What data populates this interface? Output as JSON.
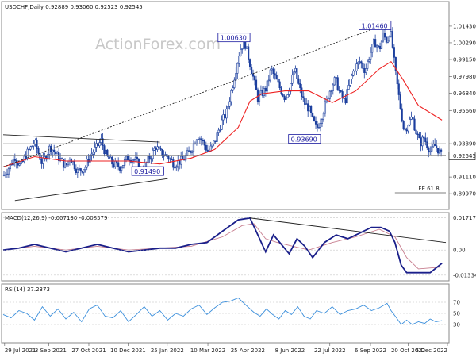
{
  "chart_data": [
    {
      "type": "candlestick",
      "title": "USDCHF,Daily 0.92889 0.93060 0.92523 0.92545",
      "watermark": "ActionForex.com",
      "ylim": [
        0.89,
        1.03
      ],
      "y_ticks": [
        "1.01430",
        "1.00290",
        "0.99150",
        "0.97980",
        "0.96840",
        "0.95660",
        "0.93390",
        "0.92545",
        "0.91110",
        "0.89970"
      ],
      "x_labels": [
        "29 Jul 2021",
        "13 Sep 2021",
        "27 Oct 2021",
        "10 Dec 2021",
        "25 Jan 2022",
        "10 Mar 2022",
        "25 Apr 2022",
        "8 Jun 2022",
        "22 Jul 2022",
        "6 Sep 2022",
        "20 Oct 2022",
        "5 Dec 2022"
      ],
      "current_price": "0.92545",
      "ma_color": "#ee2222",
      "candle_color": "#1c3f9e",
      "annotations": [
        "1.00630",
        "1.01460",
        "0.93690",
        "0.91490",
        "FE 61.8"
      ],
      "close_path": [
        [
          0,
          0.912
        ],
        [
          8,
          0.918
        ],
        [
          15,
          0.925
        ],
        [
          22,
          0.918
        ],
        [
          30,
          0.927
        ],
        [
          40,
          0.935
        ],
        [
          50,
          0.92
        ],
        [
          60,
          0.932
        ],
        [
          70,
          0.925
        ],
        [
          80,
          0.918
        ],
        [
          85,
          0.925
        ],
        [
          95,
          0.915
        ],
        [
          105,
          0.918
        ],
        [
          110,
          0.925
        ],
        [
          120,
          0.932
        ],
        [
          125,
          0.936
        ],
        [
          132,
          0.925
        ],
        [
          140,
          0.92
        ],
        [
          150,
          0.918
        ],
        [
          160,
          0.925
        ],
        [
          170,
          0.922
        ],
        [
          175,
          0.915
        ],
        [
          180,
          0.918
        ],
        [
          188,
          0.925
        ],
        [
          195,
          0.932
        ],
        [
          200,
          0.928
        ],
        [
          210,
          0.925
        ],
        [
          218,
          0.92
        ],
        [
          230,
          0.923
        ],
        [
          240,
          0.93
        ],
        [
          248,
          0.94
        ],
        [
          255,
          0.935
        ],
        [
          262,
          0.928
        ],
        [
          270,
          0.935
        ],
        [
          278,
          0.948
        ],
        [
          285,
          0.955
        ],
        [
          292,
          0.972
        ],
        [
          297,
          0.985
        ],
        [
          302,
          0.998
        ],
        [
          308,
          1.004
        ],
        [
          312,
          0.995
        ],
        [
          318,
          0.982
        ],
        [
          325,
          0.965
        ],
        [
          330,
          0.968
        ],
        [
          336,
          0.972
        ],
        [
          342,
          0.985
        ],
        [
          348,
          0.978
        ],
        [
          355,
          0.97
        ],
        [
          360,
          0.965
        ],
        [
          367,
          0.975
        ],
        [
          372,
          0.985
        ],
        [
          378,
          0.972
        ],
        [
          384,
          0.962
        ],
        [
          390,
          0.958
        ],
        [
          395,
          0.95
        ],
        [
          400,
          0.944
        ],
        [
          405,
          0.95
        ],
        [
          412,
          0.962
        ],
        [
          418,
          0.972
        ],
        [
          424,
          0.978
        ],
        [
          430,
          0.968
        ],
        [
          436,
          0.962
        ],
        [
          442,
          0.975
        ],
        [
          448,
          0.985
        ],
        [
          455,
          0.99
        ],
        [
          462,
          0.984
        ],
        [
          468,
          0.995
        ],
        [
          474,
          1.004
        ],
        [
          480,
          0.998
        ],
        [
          485,
          1.008
        ],
        [
          490,
          1.004
        ],
        [
          494,
          1.012
        ],
        [
          497,
          1.0
        ],
        [
          500,
          0.985
        ],
        [
          504,
          0.97
        ],
        [
          508,
          0.955
        ],
        [
          512,
          0.942
        ],
        [
          517,
          0.948
        ],
        [
          522,
          0.952
        ],
        [
          527,
          0.942
        ],
        [
          532,
          0.934
        ],
        [
          537,
          0.938
        ],
        [
          542,
          0.932
        ],
        [
          546,
          0.928
        ],
        [
          550,
          0.933
        ],
        [
          555,
          0.93
        ],
        [
          560,
          0.925
        ]
      ],
      "ma_path": [
        [
          0,
          0.918
        ],
        [
          40,
          0.925
        ],
        [
          80,
          0.922
        ],
        [
          120,
          0.922
        ],
        [
          160,
          0.922
        ],
        [
          200,
          0.92
        ],
        [
          240,
          0.924
        ],
        [
          270,
          0.93
        ],
        [
          300,
          0.945
        ],
        [
          315,
          0.963
        ],
        [
          330,
          0.968
        ],
        [
          360,
          0.97
        ],
        [
          390,
          0.97
        ],
        [
          420,
          0.962
        ],
        [
          450,
          0.97
        ],
        [
          480,
          0.985
        ],
        [
          495,
          0.99
        ],
        [
          510,
          0.978
        ],
        [
          530,
          0.96
        ],
        [
          560,
          0.95
        ]
      ],
      "trend_lines": [
        {
          "name": "upper",
          "from": [
            0,
            0.94
          ],
          "to": [
            200,
            0.935
          ]
        },
        {
          "name": "lower",
          "from": [
            15,
            0.895
          ],
          "to": [
            210,
            0.91
          ]
        },
        {
          "name": "dotted-trend",
          "from": [
            0,
            0.918
          ],
          "to": [
            490,
            1.016
          ]
        }
      ]
    },
    {
      "type": "line",
      "title": "MACD(12,26,9) -0.007130 -0.008579",
      "ylim": [
        -0.0155,
        0.019
      ],
      "y_ticks": [
        "0.017176",
        "0.00",
        "-0.01334"
      ],
      "macd_color": "#1a1f8a",
      "signal_color": "#c77d8e",
      "macd_path": [
        [
          0,
          0.0
        ],
        [
          20,
          0.001
        ],
        [
          40,
          0.003
        ],
        [
          60,
          0.001
        ],
        [
          80,
          -0.001
        ],
        [
          100,
          0.001
        ],
        [
          120,
          0.003
        ],
        [
          140,
          0.001
        ],
        [
          160,
          -0.001
        ],
        [
          180,
          0.0
        ],
        [
          200,
          0.001
        ],
        [
          220,
          0.001
        ],
        [
          240,
          0.003
        ],
        [
          260,
          0.004
        ],
        [
          280,
          0.01
        ],
        [
          300,
          0.016
        ],
        [
          315,
          0.017
        ],
        [
          325,
          0.008
        ],
        [
          335,
          -0.001
        ],
        [
          345,
          0.008
        ],
        [
          355,
          0.003
        ],
        [
          365,
          -0.002
        ],
        [
          375,
          0.006
        ],
        [
          385,
          0.002
        ],
        [
          395,
          -0.004
        ],
        [
          410,
          0.004
        ],
        [
          425,
          0.008
        ],
        [
          440,
          0.006
        ],
        [
          455,
          0.009
        ],
        [
          470,
          0.012
        ],
        [
          482,
          0.012
        ],
        [
          493,
          0.01
        ],
        [
          500,
          0.004
        ],
        [
          508,
          -0.008
        ],
        [
          515,
          -0.012
        ],
        [
          530,
          -0.012
        ],
        [
          545,
          -0.012
        ],
        [
          560,
          -0.007
        ]
      ],
      "signal_path": [
        [
          0,
          0.0
        ],
        [
          40,
          0.002
        ],
        [
          80,
          0.0
        ],
        [
          120,
          0.002
        ],
        [
          160,
          0.0
        ],
        [
          200,
          0.001
        ],
        [
          240,
          0.002
        ],
        [
          280,
          0.007
        ],
        [
          305,
          0.013
        ],
        [
          320,
          0.014
        ],
        [
          335,
          0.006
        ],
        [
          350,
          0.004
        ],
        [
          370,
          0.002
        ],
        [
          390,
          0.0
        ],
        [
          420,
          0.004
        ],
        [
          450,
          0.007
        ],
        [
          480,
          0.011
        ],
        [
          500,
          0.007
        ],
        [
          515,
          -0.004
        ],
        [
          530,
          -0.01
        ],
        [
          560,
          -0.009
        ]
      ],
      "trend_line": {
        "from": [
          315,
          0.017
        ],
        "to": [
          565,
          0.004
        ]
      }
    },
    {
      "type": "line",
      "title": "RSI(14) 37.2373",
      "ylim": [
        0,
        100
      ],
      "y_ticks": [
        "70",
        "50",
        "30"
      ],
      "rsi_color": "#3b8fdc",
      "rsi_path": [
        [
          0,
          48
        ],
        [
          10,
          42
        ],
        [
          20,
          55
        ],
        [
          30,
          50
        ],
        [
          40,
          38
        ],
        [
          50,
          62
        ],
        [
          60,
          45
        ],
        [
          70,
          58
        ],
        [
          80,
          40
        ],
        [
          90,
          52
        ],
        [
          100,
          35
        ],
        [
          110,
          58
        ],
        [
          120,
          65
        ],
        [
          130,
          45
        ],
        [
          140,
          42
        ],
        [
          150,
          55
        ],
        [
          160,
          35
        ],
        [
          170,
          48
        ],
        [
          180,
          62
        ],
        [
          190,
          45
        ],
        [
          200,
          55
        ],
        [
          210,
          38
        ],
        [
          220,
          50
        ],
        [
          230,
          45
        ],
        [
          240,
          58
        ],
        [
          250,
          65
        ],
        [
          260,
          48
        ],
        [
          270,
          60
        ],
        [
          280,
          70
        ],
        [
          290,
          72
        ],
        [
          300,
          78
        ],
        [
          306,
          70
        ],
        [
          312,
          62
        ],
        [
          320,
          52
        ],
        [
          328,
          45
        ],
        [
          336,
          58
        ],
        [
          344,
          48
        ],
        [
          352,
          40
        ],
        [
          360,
          55
        ],
        [
          368,
          48
        ],
        [
          376,
          62
        ],
        [
          384,
          45
        ],
        [
          392,
          40
        ],
        [
          400,
          55
        ],
        [
          410,
          50
        ],
        [
          420,
          62
        ],
        [
          430,
          48
        ],
        [
          440,
          55
        ],
        [
          450,
          58
        ],
        [
          460,
          65
        ],
        [
          470,
          55
        ],
        [
          480,
          60
        ],
        [
          490,
          68
        ],
        [
          495,
          55
        ],
        [
          502,
          42
        ],
        [
          508,
          30
        ],
        [
          515,
          38
        ],
        [
          522,
          30
        ],
        [
          530,
          35
        ],
        [
          538,
          32
        ],
        [
          545,
          40
        ],
        [
          552,
          35
        ],
        [
          560,
          37
        ]
      ]
    }
  ]
}
